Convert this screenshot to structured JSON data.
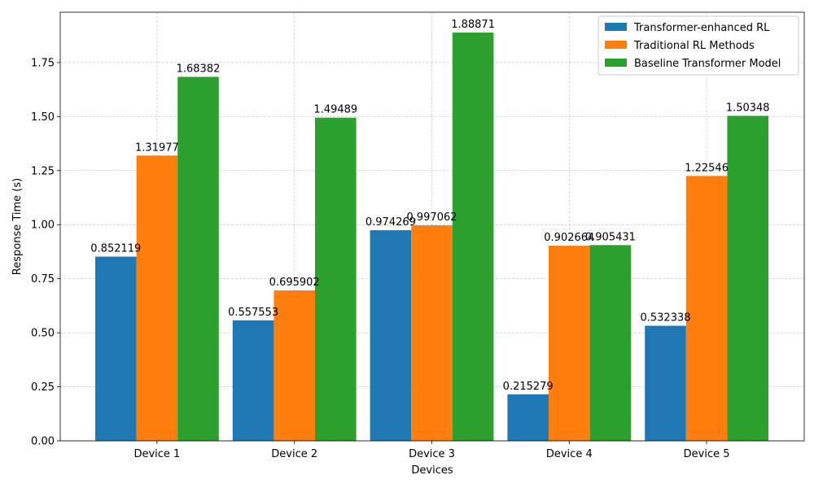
{
  "chart_data": {
    "type": "bar",
    "categories": [
      "Device 1",
      "Device 2",
      "Device 3",
      "Device 4",
      "Device 5"
    ],
    "series": [
      {
        "name": "Transformer-enhanced RL",
        "color": "#1f77b4",
        "values": [
          0.852119,
          0.557553,
          0.974269,
          0.215279,
          0.532338
        ],
        "labels": [
          "0.852119",
          "0.557553",
          "0.974269",
          "0.215279",
          "0.532338"
        ]
      },
      {
        "name": "Traditional RL Methods",
        "color": "#ff7f0e",
        "values": [
          1.31977,
          0.695902,
          0.997062,
          0.902664,
          1.22546
        ],
        "labels": [
          "1.31977",
          "0.695902",
          "0.997062",
          "0.902664",
          "1.22546"
        ]
      },
      {
        "name": "Baseline Transformer Model",
        "color": "#2ca02c",
        "values": [
          1.68382,
          1.49489,
          1.88871,
          0.905431,
          1.50348
        ],
        "labels": [
          "1.68382",
          "1.49489",
          "1.88871",
          "0.905431",
          "1.50348"
        ]
      }
    ],
    "xlabel": "Devices",
    "ylabel": "Response Time (s)",
    "ylim": [
      0,
      1.983
    ],
    "yticks": [
      0.0,
      0.25,
      0.5,
      0.75,
      1.0,
      1.25,
      1.5,
      1.75
    ],
    "ytick_labels": [
      "0.00",
      "0.25",
      "0.50",
      "0.75",
      "1.00",
      "1.25",
      "1.50",
      "1.75"
    ],
    "grid": true,
    "legend_position": "top-right"
  }
}
